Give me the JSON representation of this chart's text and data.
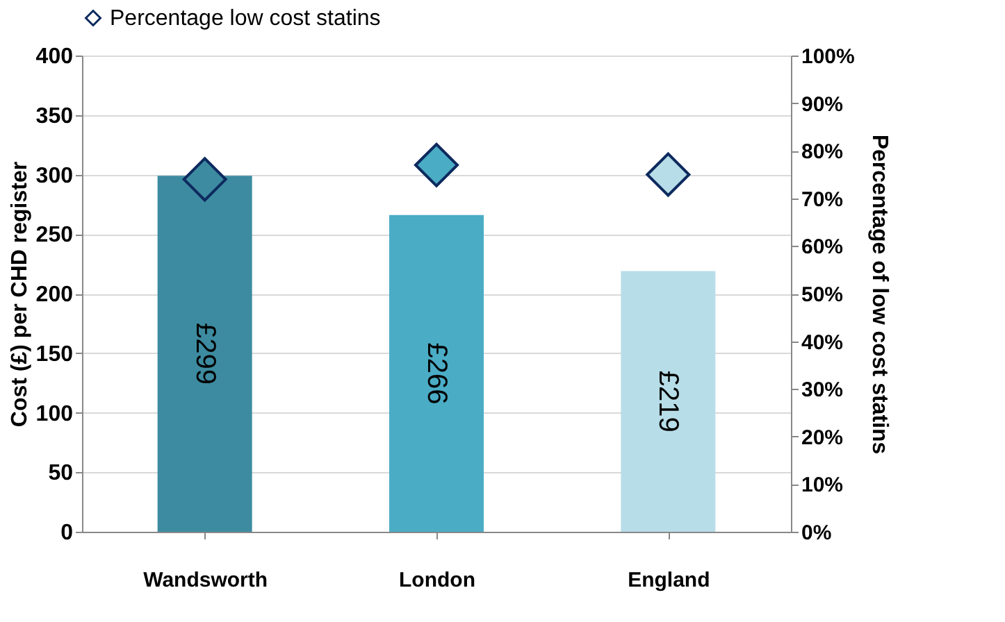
{
  "chart_data": {
    "type": "bar",
    "ylabel": "Cost (£) per CHD register",
    "y2label": "Percentage of low cost statins",
    "categories": [
      "Wandsworth",
      "London",
      "England"
    ],
    "series": [
      {
        "colors": [
          "#3d8ba0",
          "#4bacc6",
          "#b7dde8"
        ],
        "values": [
          299,
          266,
          219
        ],
        "value_labels": [
          "£299",
          "£266",
          "£219"
        ]
      },
      {
        "type": "scatter",
        "name": "Percentage low cost statins",
        "axis": "y2",
        "marker": "diamond",
        "colors": [
          "#3d8ba0",
          "#4bacc6",
          "#b7dde8"
        ],
        "values": [
          74,
          77,
          75
        ]
      }
    ],
    "ylim": [
      0,
      400
    ],
    "yticks": [
      0,
      50,
      100,
      150,
      200,
      250,
      300,
      350,
      400
    ],
    "y2lim": [
      0,
      100
    ],
    "y2ticks": [
      {
        "value": 0,
        "label": "0%"
      },
      {
        "value": 10,
        "label": "10%"
      },
      {
        "value": 20,
        "label": "20%"
      },
      {
        "value": 30,
        "label": "30%"
      },
      {
        "value": 40,
        "label": "40%"
      },
      {
        "value": 50,
        "label": "50%"
      },
      {
        "value": 60,
        "label": "60%"
      },
      {
        "value": 70,
        "label": "70%"
      },
      {
        "value": 80,
        "label": "80%"
      },
      {
        "value": 90,
        "label": "90%"
      },
      {
        "value": 100,
        "label": "100%"
      }
    ],
    "grid": "y",
    "legend": "top"
  }
}
